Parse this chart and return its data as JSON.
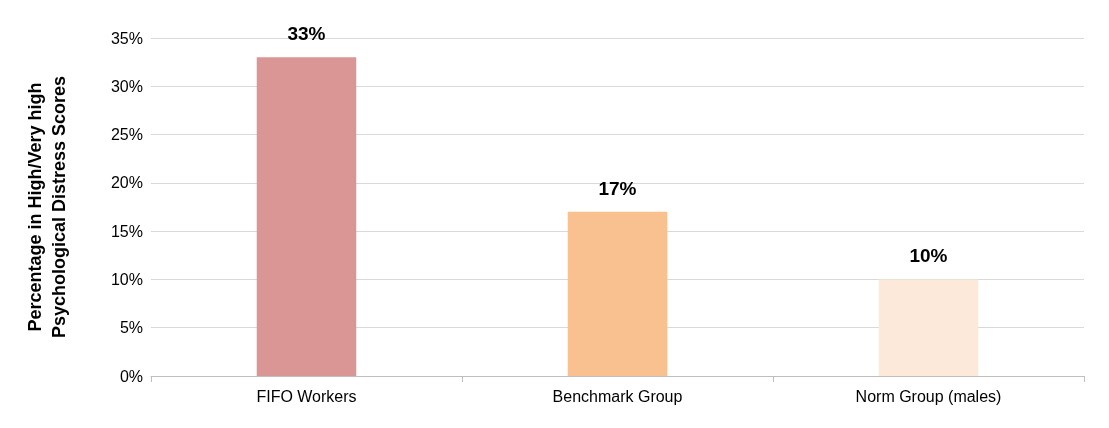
{
  "chart_data": {
    "type": "bar",
    "ylabel": "Percentage in High/Very high\nPsychological Distress Scores",
    "categories": [
      "FIFO Workers",
      "Benchmark Group",
      "Norm Group (males)"
    ],
    "values": [
      33,
      17,
      10
    ],
    "colors": [
      "#d99694",
      "#f9c090",
      "#fce9da"
    ],
    "value_labels": [
      "33%",
      "17%",
      "10%"
    ],
    "ylim": [
      0,
      35
    ],
    "yticks": [
      {
        "value": 0,
        "label": "0%"
      },
      {
        "value": 5,
        "label": "5%"
      },
      {
        "value": 10,
        "label": "10%"
      },
      {
        "value": 15,
        "label": "15%"
      },
      {
        "value": 20,
        "label": "20%"
      },
      {
        "value": 25,
        "label": "25%"
      },
      {
        "value": 30,
        "label": "30%"
      },
      {
        "value": 35,
        "label": "35%"
      }
    ],
    "grid": "y"
  }
}
